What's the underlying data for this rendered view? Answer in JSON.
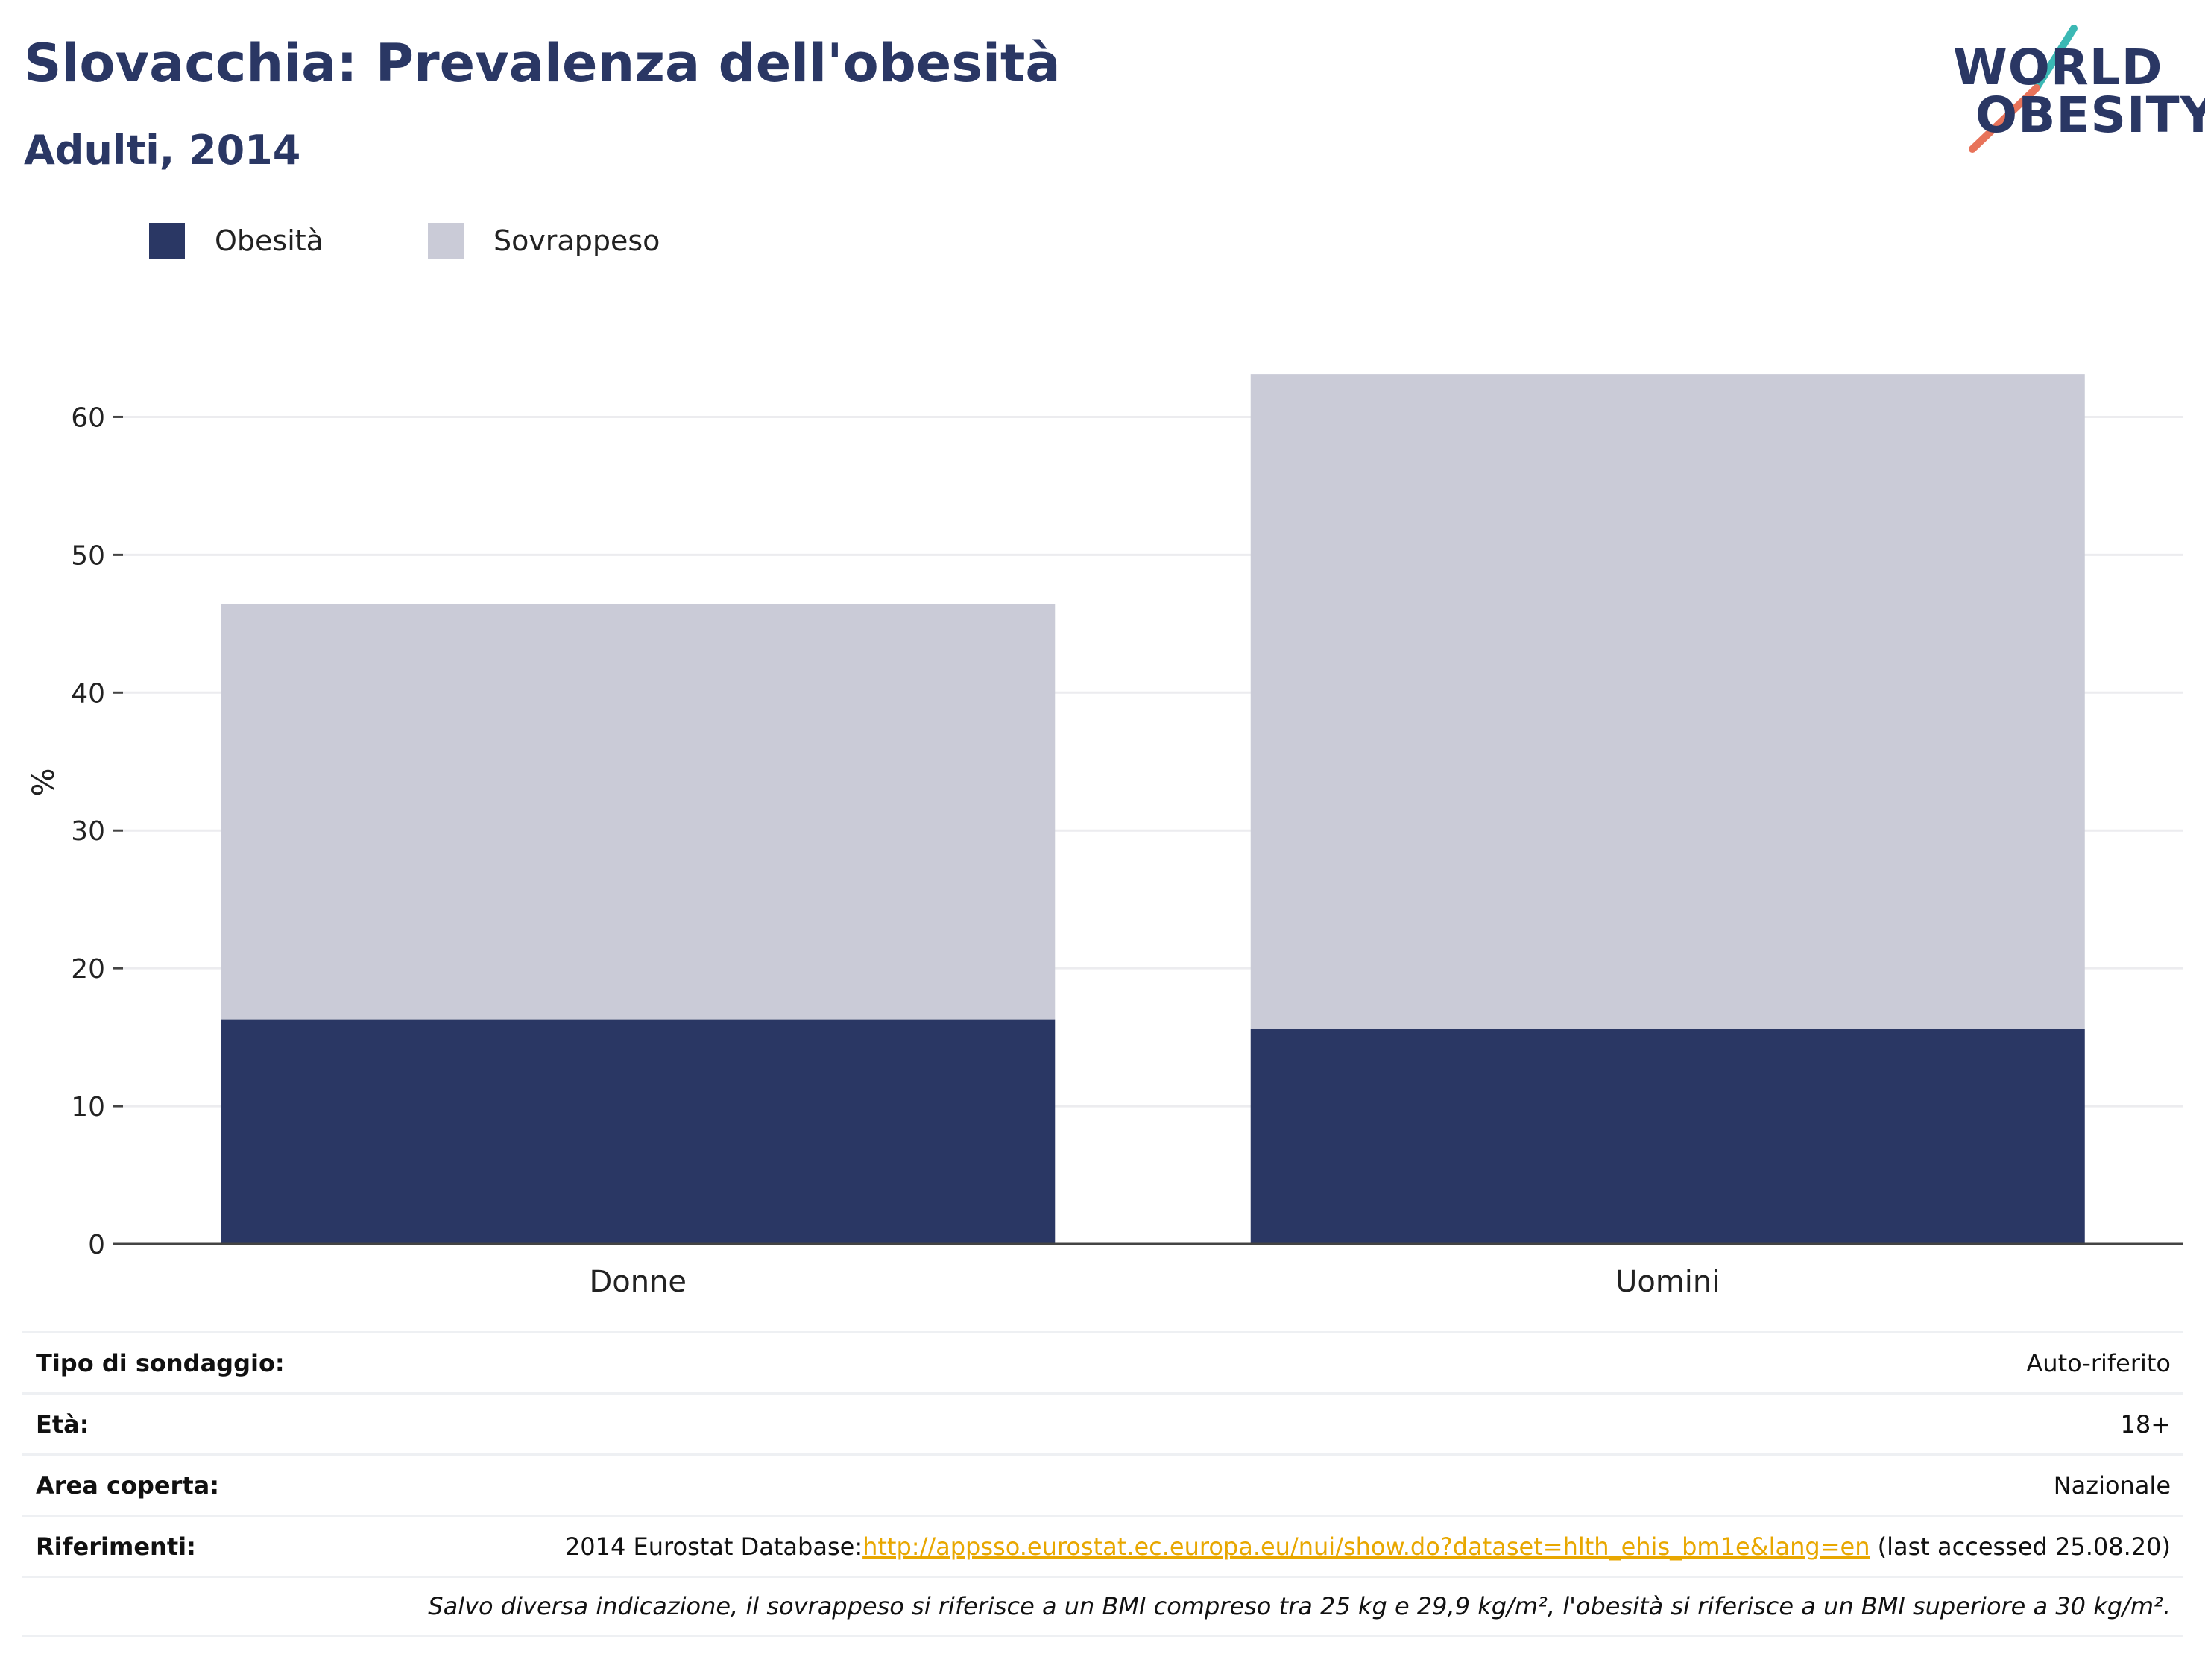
{
  "header": {
    "title": "Slovacchia: Prevalenza dell'obesità",
    "subtitle": "Adulti, 2014"
  },
  "logo": {
    "line1": "WORLD",
    "line2": "OBESITY",
    "accent_colors": [
      "#3bb8b4",
      "#e8735a"
    ]
  },
  "chart_data": {
    "type": "bar",
    "stacked": true,
    "categories": [
      "Donne",
      "Uomini"
    ],
    "series": [
      {
        "name": "Obesità",
        "values": [
          16.3,
          15.6
        ],
        "color": "#2a3764"
      },
      {
        "name": "Sovrappeso",
        "values": [
          30.1,
          47.5
        ],
        "color": "#cacbd7"
      }
    ],
    "ylabel": "%",
    "ylim": [
      0,
      67
    ],
    "yticks": [
      0,
      10,
      20,
      30,
      40,
      50,
      60
    ],
    "grid": true,
    "legend_position": "top-left"
  },
  "info": {
    "rows": [
      {
        "label": "Tipo di sondaggio:",
        "value": "Auto-riferito"
      },
      {
        "label": "Età:",
        "value": "18+"
      },
      {
        "label": "Area coperta:",
        "value": "Nazionale"
      }
    ],
    "references": {
      "label": "Riferimenti:",
      "prefix": "2014 Eurostat Database:",
      "link": "http://appsso.eurostat.ec.europa.eu/nui/show.do?dataset=hlth_ehis_bm1e&lang=en",
      "suffix": " (last accessed 25.08.20)"
    },
    "footnote": "Salvo diversa indicazione, il sovrappeso si riferisce a un BMI compreso tra 25 kg e 29,9 kg/m², l'obesità si riferisce a un BMI superiore a 30 kg/m²."
  }
}
